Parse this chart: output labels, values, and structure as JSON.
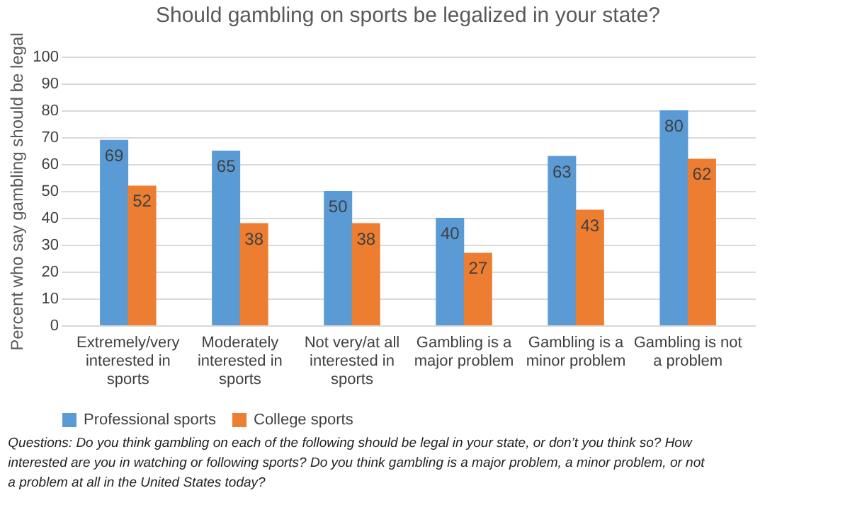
{
  "chart_data": {
    "type": "bar",
    "title": "Should gambling on sports be legalized in your state?",
    "ylabel": "Percent who say gambling should be legal",
    "categories": [
      "Extremely/very interested in sports",
      "Moderately interested in sports",
      "Not very/at all interested in sports",
      "Gambling is a major problem",
      "Gambling is a minor problem",
      "Gambling is not a problem"
    ],
    "series": [
      {
        "name": "Professional sports",
        "color": "#5b9bd5",
        "values": [
          69,
          65,
          50,
          40,
          63,
          80
        ]
      },
      {
        "name": "College sports",
        "color": "#ed7d31",
        "values": [
          52,
          38,
          38,
          27,
          43,
          62
        ]
      }
    ],
    "ylim": [
      0,
      100
    ],
    "yticks": [
      0,
      10,
      20,
      30,
      40,
      50,
      60,
      70,
      80,
      90,
      100
    ],
    "grid": "y",
    "legend": "bottom",
    "data_labels": true,
    "annotations": [
      "Questions: Do you think gambling on each of the following should be legal in your state, or don’t you think so? How interested are you in watching or following sports? Do you think gambling is a major problem, a minor problem, or not a problem at all in the United States today?"
    ]
  }
}
